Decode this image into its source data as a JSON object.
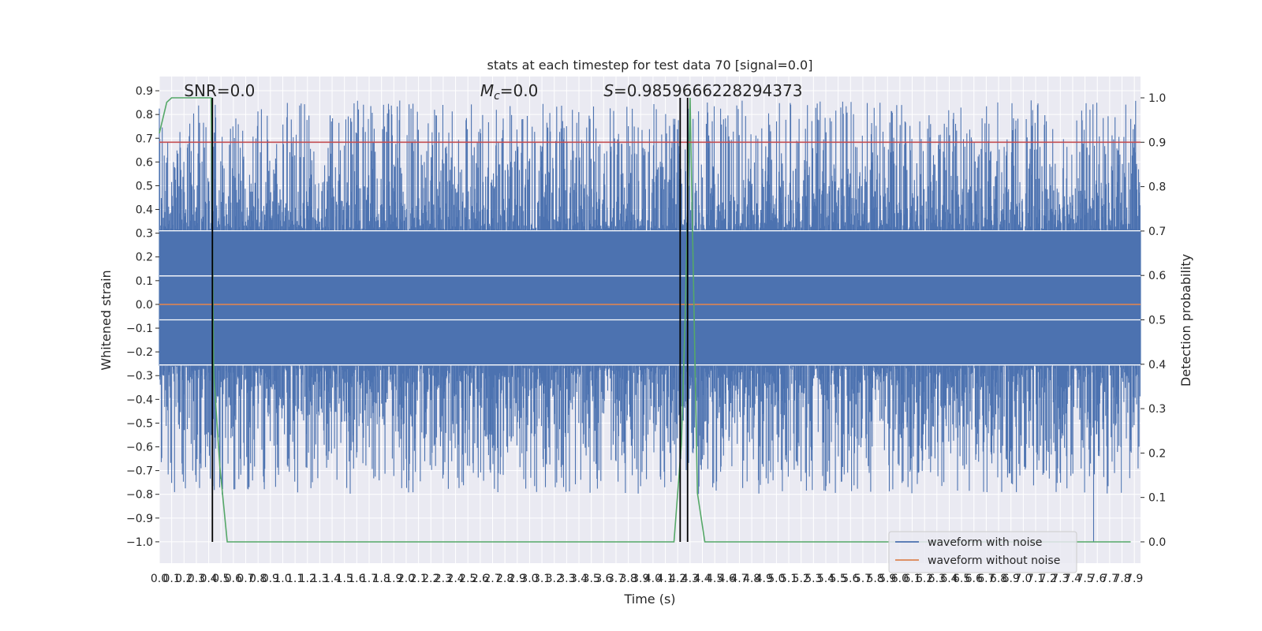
{
  "chart_data": {
    "type": "line",
    "title": "stats at each timestep for test data 70 [signal=0.0]",
    "xlabel": "Time (s)",
    "ylabel_left": "Whitened strain",
    "ylabel_right": "Detection probability",
    "xlim": [
      0.0,
      7.95
    ],
    "ylim_left": [
      -1.09,
      0.96
    ],
    "ylim_right": [
      -0.048,
      1.048
    ],
    "left_ticks": [
      -1.0,
      -0.9,
      -0.8,
      -0.7,
      -0.6,
      -0.5,
      -0.4,
      -0.3,
      -0.2,
      -0.1,
      0.0,
      0.1,
      0.2,
      0.3,
      0.4,
      0.5,
      0.6,
      0.7,
      0.8,
      0.9
    ],
    "left_tick_labels": [
      "−1.0",
      "−0.9",
      "−0.8",
      "−0.7",
      "−0.6",
      "−0.5",
      "−0.4",
      "−0.3",
      "−0.2",
      "−0.1",
      "0.0",
      "0.1",
      "0.2",
      "0.3",
      "0.4",
      "0.5",
      "0.6",
      "0.7",
      "0.8",
      "0.9"
    ],
    "right_ticks": [
      0.0,
      0.1,
      0.2,
      0.3,
      0.4,
      0.5,
      0.6,
      0.7,
      0.8,
      0.9,
      1.0
    ],
    "right_tick_labels": [
      "0.0",
      "0.1",
      "0.2",
      "0.3",
      "0.4",
      "0.5",
      "0.6",
      "0.7",
      "0.8",
      "0.9",
      "1.0"
    ],
    "x_ticks_step": 0.1,
    "x_tick_labels": [
      "0.0",
      "0.1",
      "0.2",
      "0.3",
      "0.4",
      "0.5",
      "0.6",
      "0.7",
      "0.8",
      "0.9",
      "1.0",
      "1.1",
      "1.2",
      "1.3",
      "1.4",
      "1.5",
      "1.6",
      "1.7",
      "1.8",
      "1.9",
      "2.0",
      "2.1",
      "2.2",
      "2.3",
      "2.4",
      "2.5",
      "2.6",
      "2.7",
      "2.8",
      "2.9",
      "3.0",
      "3.1",
      "3.2",
      "3.3",
      "3.4",
      "3.5",
      "3.6",
      "3.7",
      "3.8",
      "3.9",
      "4.0",
      "4.1",
      "4.2",
      "4.3",
      "4.4",
      "4.5",
      "4.6",
      "4.7",
      "4.8",
      "4.9",
      "5.0",
      "5.1",
      "5.2",
      "5.3",
      "5.4",
      "5.5",
      "5.6",
      "5.7",
      "5.8",
      "5.9",
      "6.0",
      "6.1",
      "6.2",
      "6.3",
      "6.4",
      "6.5",
      "6.6",
      "6.7",
      "6.8",
      "6.9",
      "7.0",
      "7.1",
      "7.2",
      "7.3",
      "7.4",
      "7.5",
      "7.6",
      "7.7",
      "7.8",
      "7.9"
    ],
    "grid": true,
    "annotations": [
      {
        "text": "SNR=0.0",
        "x": 0.2,
        "y": 0.9
      },
      {
        "text_symbol": "M",
        "text_sub": "c",
        "text_rest": "=0.0",
        "x": 2.6,
        "y": 0.9
      },
      {
        "text_symbol": "S",
        "text_rest": "=0.9859666228294373",
        "x": 3.6,
        "y": 0.9
      }
    ],
    "series": [
      {
        "name": "waveform with noise",
        "color": "#4c72b0",
        "axis": "left",
        "style": "noise",
        "envelope_upper": 0.31,
        "envelope_lower": -0.255,
        "peak_max": 0.86,
        "trough_min": -1.0
      },
      {
        "name": "waveform without noise",
        "color": "#dd8452",
        "axis": "left",
        "x": [
          0.0,
          7.95
        ],
        "y": [
          0.0,
          0.0
        ]
      },
      {
        "color": "#55a868",
        "axis": "right",
        "x": [
          0.0,
          0.06,
          0.1,
          0.2,
          0.3,
          0.42,
          0.44,
          0.49,
          0.55,
          4.17,
          4.23,
          4.26,
          4.3,
          4.36,
          4.42,
          7.87
        ],
        "y": [
          0.92,
          0.99,
          1.0,
          1.0,
          1.0,
          1.0,
          0.38,
          0.17,
          0.0,
          0.0,
          0.22,
          0.5,
          1.0,
          0.11,
          0.0,
          0.0
        ]
      },
      {
        "color": "#c44e52",
        "axis": "right",
        "x": [
          0.0,
          7.95
        ],
        "y": [
          0.9,
          0.9
        ]
      }
    ],
    "vertical_lines": [
      {
        "x": 0.43,
        "color": "#000000"
      },
      {
        "x": 4.22,
        "color": "#000000"
      },
      {
        "x": 4.28,
        "color": "#000000"
      }
    ],
    "white_hlines_left": [
      0.31,
      0.12,
      -0.065,
      -0.255
    ],
    "legend": {
      "placement": "lower-right",
      "entries": [
        {
          "label": "waveform with noise",
          "color": "#4c72b0"
        },
        {
          "label": "waveform without noise",
          "color": "#dd8452"
        }
      ]
    }
  }
}
